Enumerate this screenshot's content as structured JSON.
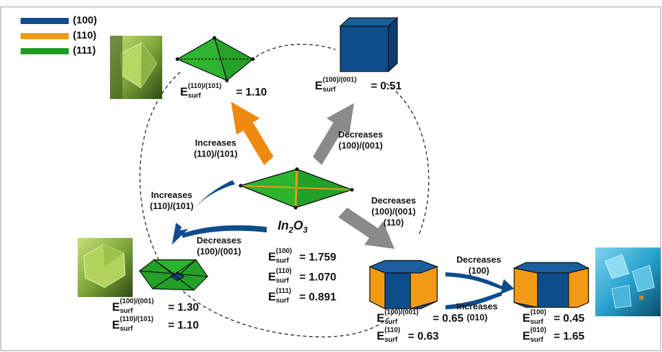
{
  "legend": [
    {
      "label": "(100)",
      "color": "#0d4d8c"
    },
    {
      "label": "(110)",
      "color": "#f29a16"
    },
    {
      "label": "(111)",
      "color": "#1f9a23"
    }
  ],
  "center": {
    "formula_main": "In",
    "formula_sub1": "2",
    "formula_mid": "O",
    "formula_sub2": "3",
    "energies": [
      {
        "sup": "(100)",
        "value": "= 1.759"
      },
      {
        "sup": "(110)",
        "value": "= 1.070"
      },
      {
        "sup": "(111)",
        "value": "= 0.891"
      }
    ]
  },
  "arrows": {
    "up_left": {
      "line1": "Increases",
      "line2": "(110)/(101)",
      "color": "#ee8a10"
    },
    "up_right": {
      "line1": "Decreases",
      "line2": "(100)/(001)",
      "color": "#8a8a8a"
    },
    "left": {
      "line1": "Increases",
      "line2": "(110)/(101)",
      "line3": "Decreases",
      "line4": "(100)/(001)",
      "color": "#0d4d8c"
    },
    "down_right": {
      "line1": "Decreases",
      "line2": "(100)/(001)",
      "line3": "(110)",
      "color": "#8a8a8a"
    },
    "far_right": {
      "line1": "Decreases",
      "line2": "(100)",
      "line3": "Increases",
      "line4": "(010)",
      "color": "#0d4d8c"
    }
  },
  "energy_labels": {
    "top_left": [
      {
        "sup": "(110)/(101)",
        "sub": "surf",
        "value": "= 1.10"
      }
    ],
    "top_right": [
      {
        "sup": "(100)/(001)",
        "sub": "surf",
        "value": "= 0.51"
      }
    ],
    "bottom_left": [
      {
        "sup": "(100)/(001)",
        "sub": "surf",
        "value": "= 1.30"
      },
      {
        "sup": "(110)/(101)",
        "sub": "surf",
        "value": "= 1.10"
      }
    ],
    "bottom_mid": [
      {
        "sup": "(100)/(001)",
        "sub": "surf",
        "value": "= 0.65"
      },
      {
        "sup": "(110)",
        "sub": "surf",
        "value": "= 0.63"
      }
    ],
    "bottom_right": [
      {
        "sup": "(100)",
        "sub": "surf",
        "value": "= 0.45"
      },
      {
        "sup": "(010)",
        "sub": "surf",
        "value": "= 1.65"
      }
    ]
  },
  "energy_symbol": "E",
  "colors": {
    "c100": "#0d4d8c",
    "c110": "#f29a16",
    "c111": "#1f9a23",
    "gray": "#8a8a8a",
    "orange": "#ee8a10"
  }
}
